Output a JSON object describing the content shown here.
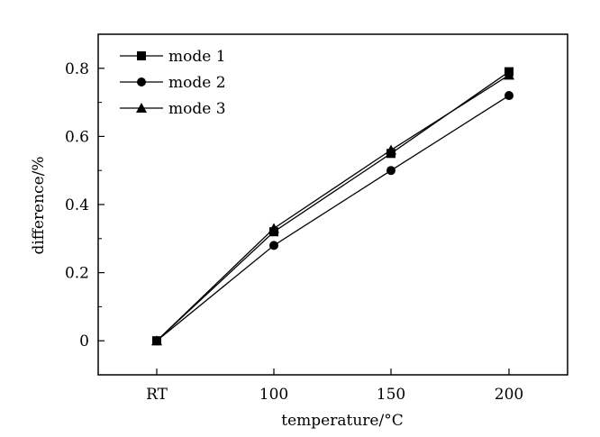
{
  "chart_data": {
    "type": "line",
    "categories": [
      "RT",
      "100",
      "150",
      "200"
    ],
    "series": [
      {
        "name": "mode 1",
        "marker": "square",
        "values": [
          0.0,
          0.32,
          0.55,
          0.79
        ]
      },
      {
        "name": "mode 2",
        "marker": "circle",
        "values": [
          0.0,
          0.28,
          0.5,
          0.72
        ]
      },
      {
        "name": "mode 3",
        "marker": "triangle",
        "values": [
          0.0,
          0.33,
          0.56,
          0.78
        ]
      }
    ],
    "xlabel": "temperature/°C",
    "ylabel": "difference/%",
    "ylim": [
      -0.1,
      0.9
    ],
    "yticks": [
      "0",
      "0.2",
      "0.4",
      "0.6",
      "0.8"
    ],
    "ytick_values": [
      0,
      0.2,
      0.4,
      0.6,
      0.8
    ],
    "legend_position": "top-left",
    "grid": false,
    "line_color": "#000000"
  }
}
